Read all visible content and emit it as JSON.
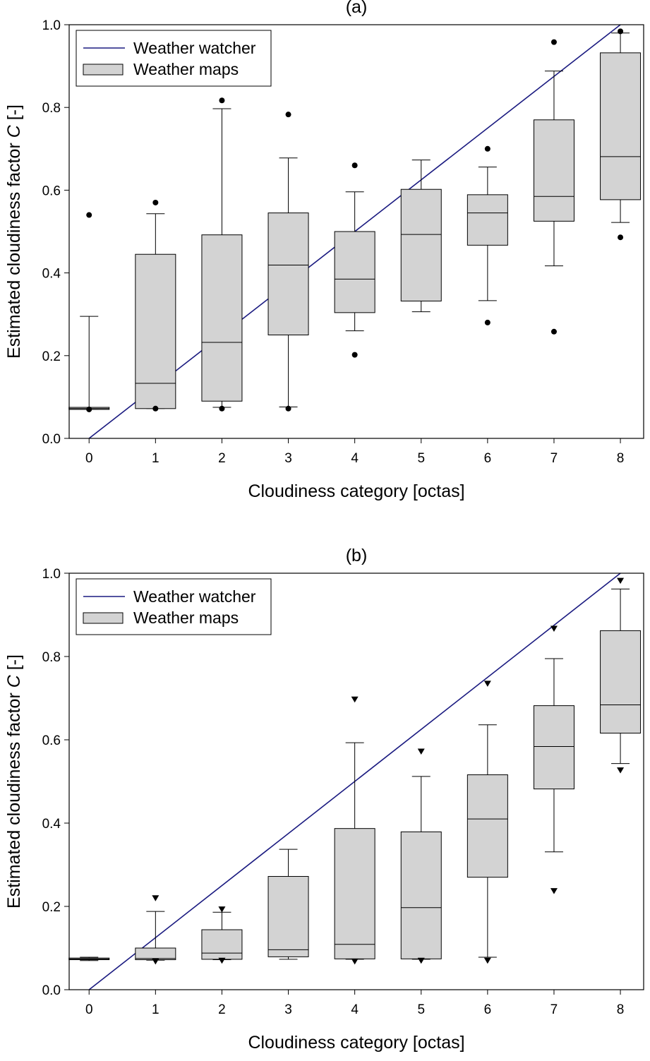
{
  "chart_data": [
    {
      "type": "box",
      "title": "(a)",
      "xlabel": "Cloudiness category [octas]",
      "ylabel_main": "Estimated cloudiness factor ",
      "ylabel_italic": "C",
      "ylabel_unit": " [-]",
      "xlim": [
        -0.3,
        8.35
      ],
      "ylim": [
        0,
        1
      ],
      "x_ticks": [
        "0",
        "1",
        "2",
        "3",
        "4",
        "5",
        "6",
        "7",
        "8"
      ],
      "y_ticks": [
        "0.0",
        "0.2",
        "0.4",
        "0.6",
        "0.8",
        "1.0"
      ],
      "legend": {
        "position": "top-left",
        "line_label": "Weather watcher",
        "box_label": "Weather maps"
      },
      "reference_line": {
        "name": "Weather watcher",
        "color": "#1a1a80",
        "from": [
          0,
          0
        ],
        "to": [
          8,
          1
        ]
      },
      "outlier_marker": "circle",
      "box_color": "#d3d3d3",
      "boxes": [
        {
          "x": 0,
          "whisker_low": 0.07,
          "q1": 0.07,
          "median": 0.072,
          "q3": 0.075,
          "whisker_high": 0.295,
          "outliers": [
            0.07,
            0.54
          ]
        },
        {
          "x": 1,
          "whisker_low": 0.072,
          "q1": 0.072,
          "median": 0.133,
          "q3": 0.445,
          "whisker_high": 0.543,
          "outliers": [
            0.072,
            0.57
          ]
        },
        {
          "x": 2,
          "whisker_low": 0.075,
          "q1": 0.09,
          "median": 0.232,
          "q3": 0.492,
          "whisker_high": 0.797,
          "outliers": [
            0.072,
            0.817
          ]
        },
        {
          "x": 3,
          "whisker_low": 0.076,
          "q1": 0.25,
          "median": 0.419,
          "q3": 0.545,
          "whisker_high": 0.678,
          "outliers": [
            0.072,
            0.783
          ]
        },
        {
          "x": 4,
          "whisker_low": 0.26,
          "q1": 0.304,
          "median": 0.385,
          "q3": 0.5,
          "whisker_high": 0.596,
          "outliers": [
            0.202,
            0.66
          ]
        },
        {
          "x": 5,
          "whisker_low": 0.306,
          "q1": 0.332,
          "median": 0.493,
          "q3": 0.602,
          "whisker_high": 0.673,
          "outliers": []
        },
        {
          "x": 6,
          "whisker_low": 0.333,
          "q1": 0.467,
          "median": 0.545,
          "q3": 0.589,
          "whisker_high": 0.656,
          "outliers": [
            0.28,
            0.7
          ]
        },
        {
          "x": 7,
          "whisker_low": 0.417,
          "q1": 0.525,
          "median": 0.585,
          "q3": 0.77,
          "whisker_high": 0.888,
          "outliers": [
            0.258,
            0.958
          ]
        },
        {
          "x": 8,
          "whisker_low": 0.522,
          "q1": 0.577,
          "median": 0.681,
          "q3": 0.932,
          "whisker_high": 0.98,
          "outliers": [
            0.486,
            0.984
          ]
        }
      ]
    },
    {
      "type": "box",
      "title": "(b)",
      "xlabel": "Cloudiness category [octas]",
      "ylabel_main": "Estimated cloudiness factor ",
      "ylabel_italic": "C",
      "ylabel_unit": " [-]",
      "xlim": [
        -0.3,
        8.35
      ],
      "ylim": [
        0,
        1
      ],
      "x_ticks": [
        "0",
        "1",
        "2",
        "3",
        "4",
        "5",
        "6",
        "7",
        "8"
      ],
      "y_ticks": [
        "0.0",
        "0.2",
        "0.4",
        "0.6",
        "0.8",
        "1.0"
      ],
      "legend": {
        "position": "top-left",
        "line_label": "Weather watcher",
        "box_label": "Weather maps"
      },
      "reference_line": {
        "name": "Weather watcher",
        "color": "#1a1a80",
        "from": [
          0,
          0
        ],
        "to": [
          8,
          1
        ]
      },
      "outlier_marker": "triangle-down",
      "box_color": "#d3d3d3",
      "boxes": [
        {
          "x": 0,
          "whisker_low": 0.07,
          "q1": 0.072,
          "median": 0.074,
          "q3": 0.076,
          "whisker_high": 0.078,
          "outliers": []
        },
        {
          "x": 1,
          "whisker_low": 0.071,
          "q1": 0.072,
          "median": 0.075,
          "q3": 0.1,
          "whisker_high": 0.188,
          "outliers": [
            0.068,
            0.22
          ]
        },
        {
          "x": 2,
          "whisker_low": 0.072,
          "q1": 0.073,
          "median": 0.088,
          "q3": 0.144,
          "whisker_high": 0.186,
          "outliers": [
            0.07,
            0.193
          ]
        },
        {
          "x": 3,
          "whisker_low": 0.073,
          "q1": 0.079,
          "median": 0.096,
          "q3": 0.272,
          "whisker_high": 0.337,
          "outliers": []
        },
        {
          "x": 4,
          "whisker_low": 0.073,
          "q1": 0.074,
          "median": 0.109,
          "q3": 0.387,
          "whisker_high": 0.593,
          "outliers": [
            0.068,
            0.697
          ]
        },
        {
          "x": 5,
          "whisker_low": 0.073,
          "q1": 0.074,
          "median": 0.197,
          "q3": 0.379,
          "whisker_high": 0.512,
          "outliers": [
            0.07,
            0.572
          ]
        },
        {
          "x": 6,
          "whisker_low": 0.078,
          "q1": 0.27,
          "median": 0.41,
          "q3": 0.516,
          "whisker_high": 0.636,
          "outliers": [
            0.07,
            0.735
          ]
        },
        {
          "x": 7,
          "whisker_low": 0.331,
          "q1": 0.482,
          "median": 0.584,
          "q3": 0.682,
          "whisker_high": 0.795,
          "outliers": [
            0.237,
            0.867
          ]
        },
        {
          "x": 8,
          "whisker_low": 0.543,
          "q1": 0.616,
          "median": 0.684,
          "q3": 0.862,
          "whisker_high": 0.962,
          "outliers": [
            0.527,
            0.982
          ]
        }
      ]
    }
  ]
}
